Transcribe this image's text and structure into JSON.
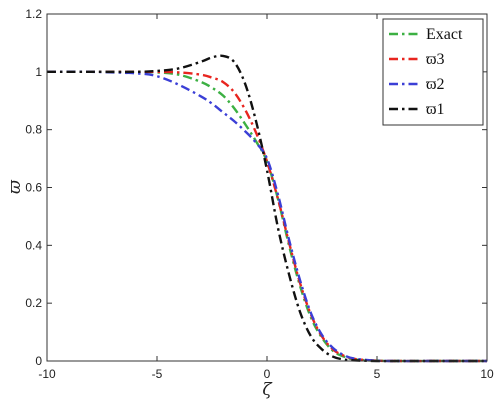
{
  "chart_data": {
    "type": "line",
    "title": "",
    "xlabel": "ζ",
    "ylabel": "ϖ",
    "xlim": [
      -10,
      10
    ],
    "ylim": [
      0,
      1.2
    ],
    "xticks": [
      "-10",
      "-5",
      "0",
      "5",
      "10"
    ],
    "yticks": [
      "0",
      "0.2",
      "0.4",
      "0.6",
      "0.8",
      "1",
      "1.2"
    ],
    "grid": false,
    "legend_position": "top-right",
    "series": [
      {
        "name": "Exact",
        "color": "#3cb043",
        "style": "dash-dot",
        "x": [
          -10,
          -8,
          -6,
          -5,
          -4,
          -3,
          -2.5,
          -2,
          -1.5,
          -1,
          -0.5,
          0,
          0.5,
          1,
          1.5,
          2,
          2.5,
          3,
          3.5,
          4,
          5,
          6,
          8,
          10
        ],
        "y": [
          1,
          1,
          1,
          0.998,
          0.99,
          0.965,
          0.945,
          0.918,
          0.875,
          0.82,
          0.76,
          0.69,
          0.56,
          0.4,
          0.26,
          0.15,
          0.08,
          0.035,
          0.015,
          0.005,
          0.001,
          0,
          0,
          0
        ]
      },
      {
        "name": "ϖ3",
        "color": "#e8251f",
        "style": "dash-dot",
        "x": [
          -10,
          -8,
          -6,
          -5,
          -4,
          -3,
          -2.5,
          -2,
          -1.5,
          -1,
          -0.5,
          0,
          0.5,
          1,
          1.5,
          2,
          2.5,
          3,
          3.5,
          4,
          5,
          6,
          8,
          10
        ],
        "y": [
          1,
          1,
          1,
          1,
          0.998,
          0.99,
          0.98,
          0.965,
          0.93,
          0.87,
          0.79,
          0.69,
          0.56,
          0.41,
          0.27,
          0.16,
          0.085,
          0.04,
          0.018,
          0.007,
          0.001,
          0,
          0,
          0
        ]
      },
      {
        "name": "ϖ2",
        "color": "#3b3fd6",
        "style": "dash-dot",
        "x": [
          -10,
          -8,
          -6,
          -5,
          -4,
          -3,
          -2.5,
          -2,
          -1.5,
          -1,
          -0.5,
          0,
          0.5,
          1,
          1.5,
          2,
          2.5,
          3,
          3.5,
          4,
          5,
          6,
          8,
          10
        ],
        "y": [
          1,
          1,
          0.995,
          0.985,
          0.955,
          0.915,
          0.89,
          0.86,
          0.83,
          0.795,
          0.755,
          0.7,
          0.575,
          0.42,
          0.28,
          0.165,
          0.09,
          0.045,
          0.02,
          0.008,
          0.001,
          0,
          0,
          0
        ]
      },
      {
        "name": "ϖ1",
        "color": "#111111",
        "style": "dash-dot",
        "x": [
          -10,
          -8,
          -6,
          -5,
          -4,
          -3,
          -2.5,
          -2,
          -1.5,
          -1,
          -0.5,
          0,
          0.5,
          1,
          1.5,
          2,
          2.5,
          3,
          3.5,
          4,
          5,
          6,
          8,
          10
        ],
        "y": [
          1,
          1,
          1,
          1.003,
          1.012,
          1.035,
          1.05,
          1.055,
          1.035,
          0.96,
          0.83,
          0.66,
          0.46,
          0.3,
          0.17,
          0.085,
          0.04,
          0.015,
          0.005,
          0.002,
          0,
          0,
          0,
          0
        ]
      }
    ]
  }
}
